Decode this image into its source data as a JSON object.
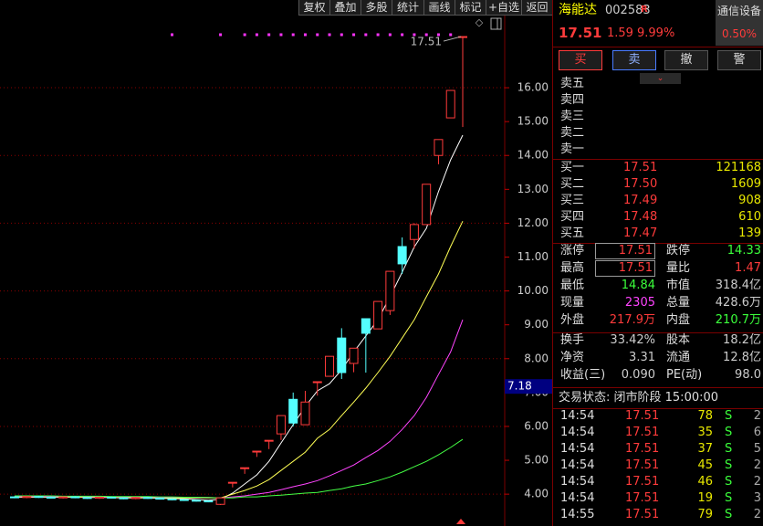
{
  "toolbar": [
    "复权",
    "叠加",
    "多股",
    "统计",
    "画线",
    "标记",
    "+自选",
    "返回"
  ],
  "quote": {
    "name": "海能达",
    "code": "002583",
    "badge": "R",
    "sector": "通信设备",
    "sector_change": "0.50%",
    "price": "17.51",
    "change": "1.59",
    "change_pct": "9.99%"
  },
  "actions": [
    "买",
    "卖",
    "撤",
    "警"
  ],
  "order_book": {
    "sell": [
      "卖五",
      "卖四",
      "卖三",
      "卖二",
      "卖一"
    ],
    "buy": [
      [
        "买一",
        "17.51",
        "121168"
      ],
      [
        "买二",
        "17.50",
        "1609"
      ],
      [
        "买三",
        "17.49",
        "908"
      ],
      [
        "买四",
        "17.48",
        "610"
      ],
      [
        "买五",
        "17.47",
        "139"
      ]
    ]
  },
  "stats": [
    [
      "涨停",
      "17.51",
      "跌停",
      "14.33"
    ],
    [
      "最高",
      "17.51",
      "量比",
      "1.47"
    ],
    [
      "最低",
      "14.84",
      "市值",
      "318.4亿"
    ],
    [
      "现量",
      "2305",
      "总量",
      "428.6万"
    ],
    [
      "外盘",
      "217.9万",
      "内盘",
      "210.7万"
    ]
  ],
  "fundamentals": [
    [
      "换手",
      "33.42%",
      "股本",
      "18.2亿"
    ],
    [
      "净资",
      "3.31",
      "流通",
      "12.8亿"
    ],
    [
      "收益(三)",
      "0.090",
      "PE(动)",
      "98.0"
    ]
  ],
  "trade_status": "交易状态: 闭市阶段 15:00:00",
  "trades": [
    [
      "14:54",
      "17.51",
      "78",
      "S",
      "2"
    ],
    [
      "14:54",
      "17.51",
      "35",
      "S",
      "6"
    ],
    [
      "14:54",
      "17.51",
      "37",
      "S",
      "5"
    ],
    [
      "14:54",
      "17.51",
      "45",
      "S",
      "2"
    ],
    [
      "14:54",
      "17.51",
      "46",
      "S",
      "2"
    ],
    [
      "14:54",
      "17.51",
      "19",
      "S",
      "3"
    ],
    [
      "14:55",
      "17.51",
      "79",
      "S",
      "2"
    ]
  ],
  "chart_data": {
    "type": "candlestick",
    "ylim": [
      3.06,
      18.59
    ],
    "yticks": [
      {
        "value": 4,
        "label": "4.00"
      },
      {
        "value": 5,
        "label": "5.00"
      },
      {
        "value": 6,
        "label": "6.00"
      },
      {
        "value": 7,
        "label": "7.00"
      },
      {
        "value": 8,
        "label": "8.00"
      },
      {
        "value": 9,
        "label": "9.00"
      },
      {
        "value": 10,
        "label": "10.00"
      },
      {
        "value": 11,
        "label": "11.00"
      },
      {
        "value": 12,
        "label": "12.00"
      },
      {
        "value": 13,
        "label": "13.00"
      },
      {
        "value": 14,
        "label": "14.00"
      },
      {
        "value": 15,
        "label": "15.00"
      },
      {
        "value": 16,
        "label": "16.00"
      }
    ],
    "grid": true,
    "up_color": "#ff3b3b",
    "down_color": "#54ffff",
    "open": [
      3.92,
      3.9,
      3.93,
      3.91,
      3.89,
      3.92,
      3.9,
      3.88,
      3.91,
      3.89,
      3.87,
      3.9,
      3.88,
      3.86,
      3.84,
      3.82,
      3.8,
      3.7,
      4.35,
      4.78,
      5.27,
      5.59,
      5.78,
      6.8,
      6.05,
      7.32,
      7.48,
      8.61,
      7.86,
      9.18,
      8.88,
      9.42,
      11.31,
      11.52,
      11.96,
      14.0,
      15.11,
      17.51
    ],
    "high": [
      3.94,
      3.95,
      3.95,
      3.93,
      3.94,
      3.94,
      3.92,
      3.93,
      3.93,
      3.91,
      3.92,
      3.92,
      3.9,
      3.88,
      3.86,
      3.84,
      3.82,
      3.9,
      4.35,
      4.78,
      5.27,
      5.59,
      6.32,
      7.0,
      7.05,
      7.32,
      8.07,
      8.9,
      8.31,
      9.18,
      9.69,
      10.58,
      11.58,
      12.0,
      13.15,
      14.47,
      15.92,
      17.51
    ],
    "low": [
      3.88,
      3.88,
      3.89,
      3.87,
      3.87,
      3.88,
      3.86,
      3.86,
      3.87,
      3.85,
      3.85,
      3.86,
      3.84,
      3.82,
      3.8,
      3.78,
      3.76,
      3.68,
      4.2,
      4.6,
      5.1,
      5.33,
      5.6,
      6.0,
      6.05,
      6.91,
      7.48,
      7.4,
      7.6,
      7.59,
      8.88,
      9.29,
      10.5,
      11.25,
      11.96,
      13.74,
      15.11,
      14.84
    ],
    "close": [
      3.9,
      3.93,
      3.91,
      3.89,
      3.92,
      3.9,
      3.88,
      3.91,
      3.89,
      3.87,
      3.9,
      3.88,
      3.86,
      3.84,
      3.82,
      3.8,
      3.78,
      3.89,
      4.35,
      4.78,
      5.27,
      5.59,
      6.32,
      6.1,
      6.72,
      7.32,
      8.07,
      7.59,
      8.31,
      8.75,
      9.69,
      10.58,
      10.8,
      11.96,
      13.15,
      14.47,
      15.92,
      17.51
    ],
    "ma_lines": [
      {
        "color": "#ffffff",
        "values": [
          3.91,
          3.91,
          3.91,
          3.91,
          3.91,
          3.91,
          3.9,
          3.9,
          3.9,
          3.89,
          3.89,
          3.89,
          3.88,
          3.87,
          3.86,
          3.84,
          3.82,
          3.85,
          4.03,
          4.3,
          4.57,
          4.97,
          5.51,
          6.05,
          6.59,
          7.05,
          7.26,
          7.67,
          8.2,
          8.67,
          9.15,
          9.83,
          10.55,
          11.3,
          11.85,
          12.93,
          13.87,
          14.6
        ]
      },
      {
        "color": "#ffff55",
        "values": [
          3.92,
          3.92,
          3.92,
          3.92,
          3.92,
          3.91,
          3.91,
          3.91,
          3.91,
          3.9,
          3.9,
          3.9,
          3.9,
          3.89,
          3.89,
          3.89,
          3.89,
          3.89,
          4.0,
          4.11,
          4.24,
          4.43,
          4.7,
          4.97,
          5.24,
          5.65,
          5.91,
          6.32,
          6.72,
          7.13,
          7.59,
          8.07,
          8.61,
          9.15,
          9.83,
          10.5,
          11.31,
          12.06
        ]
      },
      {
        "color": "#ff44ff",
        "values": [
          3.93,
          3.93,
          3.93,
          3.93,
          3.93,
          3.93,
          3.93,
          3.92,
          3.92,
          3.92,
          3.92,
          3.92,
          3.91,
          3.91,
          3.91,
          3.9,
          3.9,
          3.89,
          3.92,
          3.95,
          4.0,
          4.05,
          4.13,
          4.22,
          4.3,
          4.4,
          4.54,
          4.7,
          4.86,
          5.08,
          5.29,
          5.56,
          5.91,
          6.32,
          6.86,
          7.53,
          8.2,
          9.15
        ]
      },
      {
        "color": "#44ff44",
        "values": [
          3.95,
          3.95,
          3.95,
          3.95,
          3.94,
          3.94,
          3.94,
          3.94,
          3.93,
          3.93,
          3.93,
          3.93,
          3.92,
          3.92,
          3.91,
          3.91,
          3.9,
          3.89,
          3.89,
          3.92,
          3.92,
          3.95,
          3.97,
          4.0,
          4.03,
          4.05,
          4.11,
          4.16,
          4.24,
          4.3,
          4.4,
          4.51,
          4.65,
          4.81,
          4.97,
          5.16,
          5.38,
          5.62
        ]
      }
    ],
    "annotation": 17.51,
    "cursor_price": 7.18
  }
}
